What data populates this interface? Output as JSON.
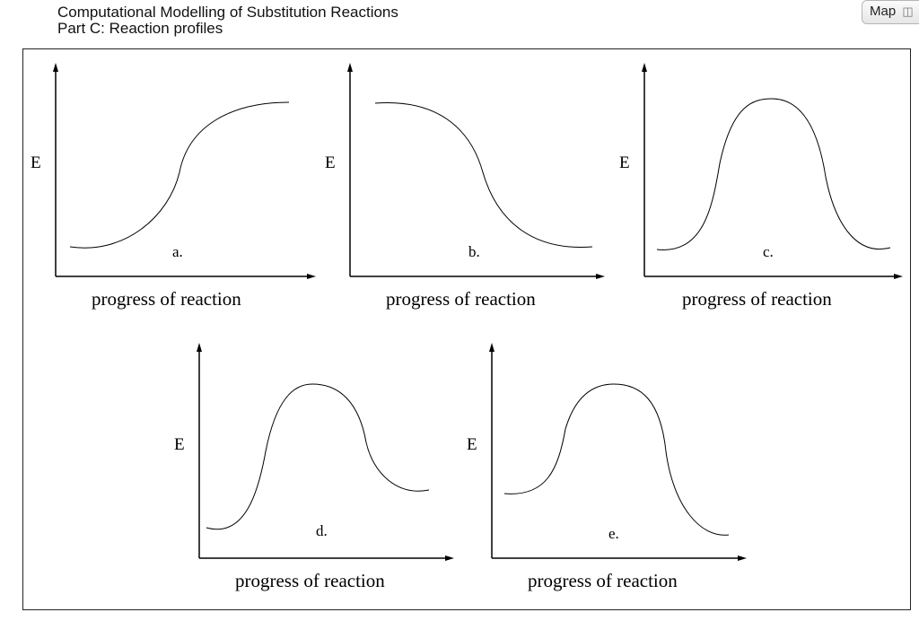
{
  "header": {
    "title": "Computational Modelling of Substitution Reactions",
    "subtitle": "Part C: Reaction profiles"
  },
  "map_button": {
    "label": "Map",
    "icon": "map-tree-icon"
  },
  "profiles": [
    {
      "label": "a.",
      "y_axis": "E",
      "x_axis": "progress of reaction"
    },
    {
      "label": "b.",
      "y_axis": "E",
      "x_axis": "progress of reaction"
    },
    {
      "label": "c.",
      "y_axis": "E",
      "x_axis": "progress of reaction"
    },
    {
      "label": "d.",
      "y_axis": "E",
      "x_axis": "progress of reaction"
    },
    {
      "label": "e.",
      "y_axis": "E",
      "x_axis": "progress of reaction"
    }
  ]
}
